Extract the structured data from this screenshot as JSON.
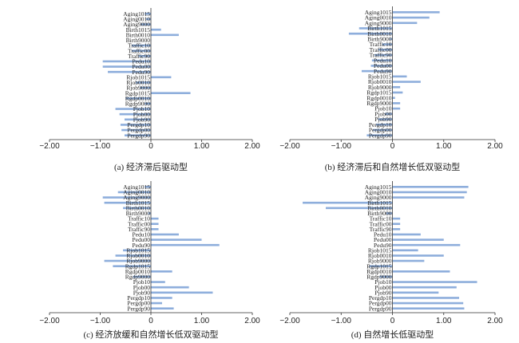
{
  "chart_data": [
    {
      "type": "bar",
      "orientation": "horizontal",
      "caption": "(a) 经济滞后驱动型",
      "categories": [
        "Aging1015",
        "Aging0010",
        "Aging9000",
        "Birth1015",
        "Birth0010",
        "Birth9000",
        "Traffic10",
        "Traffic00",
        "Traffic90",
        "Pedu10",
        "Pedu00",
        "Pedu90",
        "Rjob1015",
        "Rjob0010",
        "Rjob9000",
        "Rgdp1015",
        "Rgdp0010",
        "Rgdp9000",
        "Pjob10",
        "Pjob00",
        "Pjob90",
        "Pergdp10",
        "Pergdp00",
        "Pergdp90"
      ],
      "values": [
        -0.12,
        -0.1,
        -0.2,
        0.2,
        0.55,
        0.0,
        -0.38,
        -0.38,
        -0.25,
        -0.95,
        -0.95,
        -0.85,
        0.4,
        -0.3,
        -0.22,
        0.78,
        -0.5,
        -0.12,
        -0.7,
        -0.62,
        -0.52,
        -0.6,
        -0.58,
        -0.52
      ],
      "xlim": [
        -2,
        2
      ],
      "xticks": [
        "−2.00",
        "−1.00",
        "0",
        "1.00",
        "2.00"
      ]
    },
    {
      "type": "bar",
      "orientation": "horizontal",
      "caption": "(b) 经济滞后和自然增长低双驱动型",
      "categories": [
        "Aging1015",
        "Aging0010",
        "Aging9000",
        "Birth1015",
        "Birth0010",
        "Birth9000",
        "Traffic10",
        "Traffic00",
        "Traffic90",
        "Pedu10",
        "Pedu00",
        "Pedu90",
        "Rjob1015",
        "Rjob0010",
        "Rjob9000",
        "Rgdp1015",
        "Rgdp0010",
        "Rgdp9000",
        "Pjob10",
        "Pjob00",
        "Pjob90",
        "Pergdp10",
        "Pergdp00",
        "Pergdp90"
      ],
      "values": [
        0.92,
        0.72,
        0.48,
        -0.65,
        -0.85,
        -0.05,
        -0.2,
        -0.28,
        -0.35,
        -0.4,
        -0.42,
        -0.6,
        0.28,
        0.55,
        0.15,
        0.2,
        0.05,
        0.15,
        0.15,
        -0.15,
        -0.28,
        -0.32,
        -0.38,
        -0.5
      ],
      "xlim": [
        -2,
        2
      ],
      "xticks": [
        "−2.00",
        "−1.00",
        "0",
        "1.00",
        "2.00"
      ]
    },
    {
      "type": "bar",
      "orientation": "horizontal",
      "caption": "(c) 经济放缓和自然增长低双驱动型",
      "categories": [
        "Aging1015",
        "Aging0010",
        "Aging9000",
        "Birth1015",
        "Birth0010",
        "Birth9000",
        "Traffic10",
        "Traffic00",
        "Traffic90",
        "Pedu10",
        "Pedu00",
        "Pedu90",
        "Rjob1015",
        "Rjob0010",
        "Rjob9000",
        "Rgdp1015",
        "Rgdp0010",
        "Rgdp9000",
        "Pjob10",
        "Pjob00",
        "Pjob90",
        "Pergdp10",
        "Pergdp00",
        "Pergdp90"
      ],
      "values": [
        -0.12,
        -0.65,
        -0.95,
        -0.92,
        -0.55,
        -0.05,
        0.15,
        0.15,
        0.15,
        0.55,
        1.0,
        1.35,
        -0.55,
        -0.7,
        -0.92,
        -0.75,
        0.42,
        -0.35,
        0.28,
        0.75,
        1.22,
        0.42,
        0.22,
        0.45
      ],
      "xlim": [
        -2,
        2
      ],
      "xticks": [
        "−2.00",
        "−1.00",
        "0",
        "1.00",
        "2.00"
      ]
    },
    {
      "type": "bar",
      "orientation": "horizontal",
      "caption": "(d) 自然增长低驱动型",
      "categories": [
        "Aging1015",
        "Aging0010",
        "Aging9000",
        "Birth1015",
        "Birth0010",
        "Birth9000",
        "Traffic10",
        "Traffic00",
        "Traffic90",
        "Pedu10",
        "Pedu00",
        "Pedu90",
        "Rjob1015",
        "Rjob0010",
        "Rjob9000",
        "Rgdp1015",
        "Rgdp0010",
        "Rgdp9000",
        "Pjob10",
        "Pjob00",
        "Pjob90",
        "Pergdp10",
        "Pergdp00",
        "Pergdp90"
      ],
      "values": [
        1.48,
        1.45,
        1.4,
        -1.75,
        -1.3,
        -0.12,
        0.15,
        0.15,
        0.15,
        0.55,
        1.0,
        1.32,
        0.5,
        1.0,
        0.62,
        -0.45,
        1.12,
        -0.25,
        1.65,
        1.25,
        0.9,
        1.3,
        1.38,
        1.4
      ],
      "xlim": [
        -2,
        2
      ],
      "xticks": [
        "−2.00",
        "−1.00",
        "0",
        "1.00",
        "2.00"
      ]
    }
  ]
}
